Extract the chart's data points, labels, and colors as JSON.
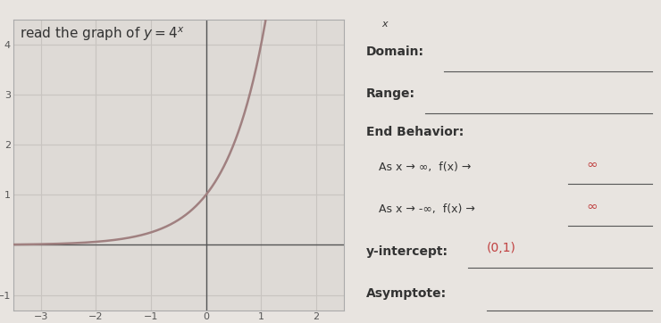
{
  "header_text": "read the graph of $y = 4^x$",
  "bg_color": "#e8e4e0",
  "plot_bg_color": "#dedad6",
  "grid_color": "#c8c4c0",
  "curve_color": "#a08080",
  "axis_color": "#555555",
  "text_color": "#333333",
  "red_color": "#c04040",
  "line_color": "#555555",
  "xlim": [
    -3.5,
    2.5
  ],
  "ylim": [
    -1.3,
    4.5
  ],
  "xticks": [
    -3,
    -2,
    -1,
    0,
    1,
    2
  ],
  "yticks": [
    -1,
    1,
    2,
    3,
    4
  ],
  "domain_label": "Domain:",
  "range_label": "Range:",
  "end_behavior_label": "End Behavior:",
  "eb1_label": "As x → ∞,  f(x) →",
  "eb1_answer": "∞",
  "eb2_label": "As x → -∞,  f(x) →",
  "eb2_answer": "∞",
  "yint_label": "y-intercept:",
  "yint_answer": "(0,1)",
  "asymptote_label": "Asymptote:",
  "x_marker": "x",
  "line_width": 1.8,
  "font_size_title": 11
}
